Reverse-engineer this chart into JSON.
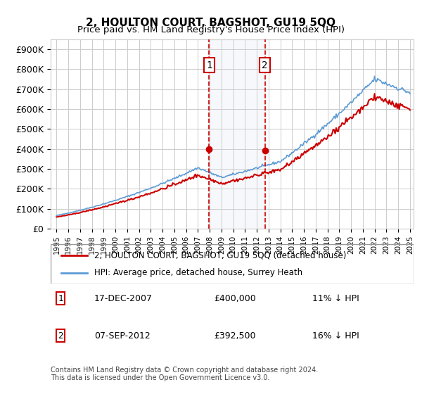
{
  "title": "2, HOULTON COURT, BAGSHOT, GU19 5QQ",
  "subtitle": "Price paid vs. HM Land Registry's House Price Index (HPI)",
  "ylabel": "",
  "xlabel": "",
  "ylim": [
    0,
    950000
  ],
  "yticks": [
    0,
    100000,
    200000,
    300000,
    400000,
    500000,
    600000,
    700000,
    800000,
    900000
  ],
  "ytick_labels": [
    "£0",
    "£100K",
    "£200K",
    "£300K",
    "£400K",
    "£500K",
    "£600K",
    "£700K",
    "£800K",
    "£900K"
  ],
  "legend_line1": "2, HOULTON COURT, BAGSHOT, GU19 5QQ (detached house)",
  "legend_line2": "HPI: Average price, detached house, Surrey Heath",
  "sale1_date": "17-DEC-2007",
  "sale1_price": "£400,000",
  "sale1_hpi": "11% ↓ HPI",
  "sale2_date": "07-SEP-2012",
  "sale2_price": "£392,500",
  "sale2_hpi": "16% ↓ HPI",
  "footer": "Contains HM Land Registry data © Crown copyright and database right 2024.\nThis data is licensed under the Open Government Licence v3.0.",
  "line_red_color": "#cc0000",
  "line_blue_color": "#5b9bd5",
  "shade_color": "#dce6f1",
  "sale1_x": 2007.96,
  "sale2_x": 2012.68,
  "background_color": "#ffffff",
  "grid_color": "#cccccc"
}
